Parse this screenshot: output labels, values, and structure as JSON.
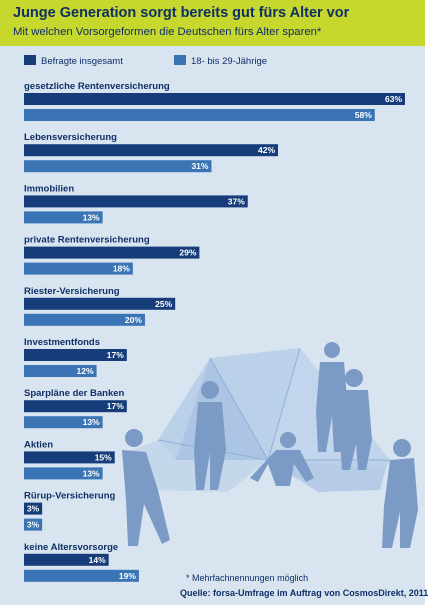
{
  "colors": {
    "header_bg": "#c6d72e",
    "background": "#d8e5f0",
    "series_total": "#163d7a",
    "series_young": "#3a74b4",
    "text": "#0f2f66"
  },
  "chart_data": {
    "type": "bar",
    "orientation": "horizontal",
    "title": "Junge Generation sorgt bereits gut fürs Alter vor",
    "subtitle": "Mit welchen Vorsorgeformen die Deutschen fürs Alter sparen*",
    "categories": [
      "gesetzliche Rentenversicherung",
      "Lebensversicherung",
      "Immobilien",
      "private Rentenversicherung",
      "Riester-Versicherung",
      "Investmentfonds",
      "Sparpläne der Banken",
      "Aktien",
      "Rürup-Versicherung",
      "keine Altersvorsorge"
    ],
    "series": [
      {
        "name": "Befragte insgesamt",
        "values": [
          63,
          42,
          37,
          29,
          25,
          17,
          17,
          15,
          3,
          14
        ]
      },
      {
        "name": "18- bis 29-Jährige",
        "values": [
          58,
          31,
          13,
          18,
          20,
          12,
          13,
          13,
          3,
          19
        ]
      }
    ],
    "value_suffix": "%",
    "xlim": [
      0,
      63
    ],
    "grid": false,
    "legend_position": "top",
    "footnote": "* Mehrfachnennungen möglich",
    "source": "Quelle: forsa-Umfrage im Auftrag von CosmosDirekt, 2011"
  }
}
